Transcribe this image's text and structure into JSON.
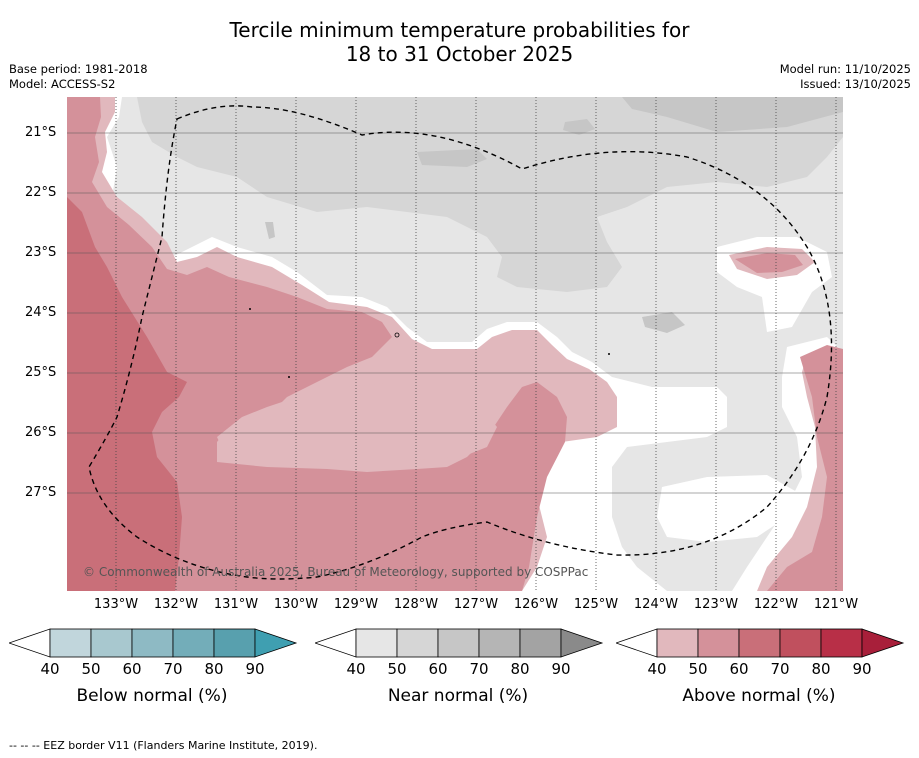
{
  "header": {
    "title_line1": "Tercile minimum temperature probabilities for",
    "title_line2": "18 to 31 October 2025",
    "base_period": "Base period: 1981-2018",
    "model": "Model: ACCESS-S2",
    "model_run": "Model run: 11/10/2025",
    "issued": "Issued: 13/10/2025"
  },
  "map": {
    "lat_labels": [
      "21°S",
      "22°S",
      "23°S",
      "24°S",
      "25°S",
      "26°S",
      "27°S"
    ],
    "lon_labels": [
      "133°W",
      "132°W",
      "131°W",
      "130°W",
      "129°W",
      "128°W",
      "127°W",
      "126°W",
      "125°W",
      "124°W",
      "123°W",
      "122°W",
      "121°W"
    ],
    "copyright": "© Commonwealth of Australia 2025, Bureau of Meteorology, supported by COSPPac",
    "colors": {
      "near40": "#e6e6e6",
      "near50": "#d6d6d6",
      "near60": "#c6c6c6",
      "above40": "#e1b8bd",
      "above50": "#d4919a",
      "above60": "#c96f79",
      "white": "#ffffff"
    }
  },
  "legends": [
    {
      "title": "Below normal (%)",
      "ticks": [
        "40",
        "50",
        "60",
        "70",
        "80",
        "90"
      ],
      "colors": [
        "#c1d6dc",
        "#a8c8cf",
        "#8ebac4",
        "#73adb9",
        "#58a0ae",
        "#3f9fb1"
      ]
    },
    {
      "title": "Near normal (%)",
      "ticks": [
        "40",
        "50",
        "60",
        "70",
        "80",
        "90"
      ],
      "colors": [
        "#e6e6e6",
        "#d6d6d6",
        "#c6c6c6",
        "#b5b5b5",
        "#a3a3a3",
        "#8a8a8a"
      ]
    },
    {
      "title": "Above normal (%)",
      "ticks": [
        "40",
        "50",
        "60",
        "70",
        "80",
        "90"
      ],
      "colors": [
        "#e1b8bd",
        "#d4919a",
        "#c96f79",
        "#c0505e",
        "#b82f47",
        "#a81f3a"
      ]
    }
  ],
  "footer": {
    "eez_note": "--  --  -- EEZ border V11 (Flanders Marine Institute, 2019)."
  }
}
